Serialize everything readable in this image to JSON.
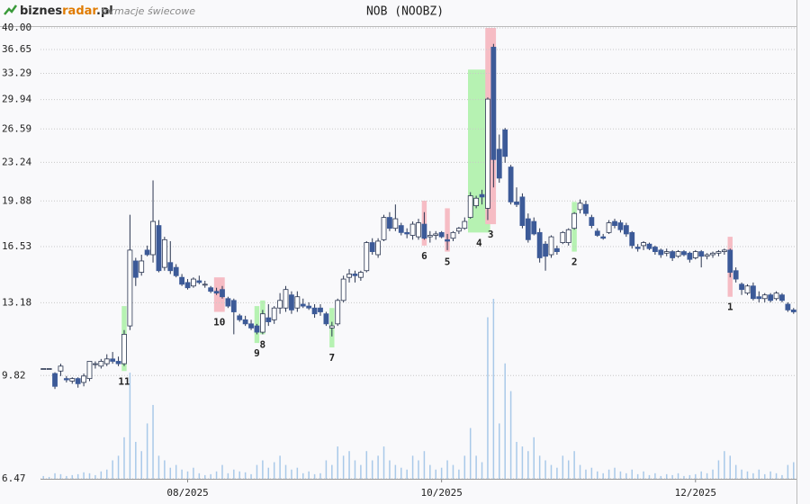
{
  "header": {
    "brand": "biznes",
    "brand_accent": "radar",
    "brand_tld": ".pl",
    "subtitle": "formacje świecowe"
  },
  "chart_data": {
    "type": "candlestick",
    "title": "NOB (NOOBZ)",
    "log_scale": true,
    "grid": true,
    "up_color": "#ffffff",
    "down_color": "#3c5a98",
    "outline_color": "#2a3550",
    "volume_color": "#a9c9e9",
    "bullish_color": "#b6f2b2",
    "bearish_color": "#f6bcc4",
    "ylim": [
      6.47,
      40
    ],
    "yticks": [
      6.47,
      9.82,
      13.18,
      16.53,
      19.88,
      23.24,
      26.59,
      29.94,
      33.29,
      36.65,
      {
        "value": 40,
        "label": "40.00"
      }
    ],
    "categories": [
      null,
      null,
      null,
      null,
      null,
      null,
      null,
      null,
      null,
      null,
      null,
      null,
      null,
      null,
      null,
      null,
      null,
      null,
      null,
      null,
      null,
      null,
      null,
      null,
      null,
      "08/2025",
      null,
      null,
      null,
      null,
      null,
      null,
      null,
      null,
      null,
      null,
      null,
      null,
      null,
      null,
      null,
      null,
      null,
      null,
      null,
      null,
      null,
      null,
      null,
      null,
      null,
      null,
      null,
      null,
      null,
      null,
      null,
      null,
      null,
      null,
      null,
      null,
      null,
      null,
      null,
      null,
      null,
      null,
      null,
      "10/2025",
      null,
      null,
      null,
      null,
      null,
      null,
      null,
      null,
      null,
      null,
      null,
      null,
      null,
      null,
      null,
      null,
      null,
      null,
      null,
      null,
      null,
      null,
      null,
      null,
      null,
      null,
      null,
      null,
      null,
      null,
      null,
      null,
      null,
      null,
      null,
      null,
      null,
      null,
      null,
      null,
      null,
      null,
      null,
      "12/2025",
      null,
      null,
      null,
      null,
      null,
      null,
      null,
      null,
      null,
      null,
      null,
      null,
      null,
      null,
      null,
      null,
      null
    ],
    "open": [
      10.1,
      10.1,
      9.9,
      10.0,
      9.7,
      9.6,
      9.7,
      9.55,
      9.7,
      10.3,
      10.2,
      10.3,
      10.5,
      10.4,
      10.3,
      12.0,
      15.6,
      14.9,
      16.3,
      16.0,
      18.0,
      15.2,
      15.5,
      15.2,
      14.6,
      14.3,
      14.1,
      14.4,
      14.2,
      14.0,
      13.8,
      13.9,
      13.4,
      13.3,
      12.5,
      12.3,
      12.1,
      12.0,
      11.7,
      12.4,
      12.3,
      12.9,
      12.9,
      13.6,
      12.9,
      13.1,
      13.0,
      12.9,
      12.9,
      12.6,
      11.9,
      12.1,
      13.3,
      14.6,
      14.8,
      14.6,
      15.0,
      16.8,
      16.0,
      17.0,
      18.6,
      17.8,
      18.0,
      17.5,
      17.3,
      17.2,
      18.1,
      17.2,
      17.3,
      17.5,
      17.0,
      17.1,
      17.6,
      17.8,
      18.6,
      19.5,
      20.4,
      19.3,
      37.0,
      24.5,
      26.5,
      22.8,
      19.8,
      20.2,
      18.5,
      18.3,
      17.5,
      16.7,
      16.0,
      16.4,
      16.8,
      16.8,
      17.8,
      19.2,
      19.6,
      18.6,
      17.6,
      17.2,
      17.5,
      18.3,
      18.2,
      18.0,
      17.5,
      16.5,
      16.6,
      16.7,
      16.5,
      16.3,
      16.1,
      16.2,
      15.9,
      16.2,
      16.1,
      15.8,
      16.2,
      15.9,
      16.0,
      16.1,
      16.2,
      16.3,
      15.0,
      14.2,
      13.7,
      14.1,
      13.5,
      13.4,
      13.6,
      13.4,
      13.6,
      13.1,
      12.8
    ],
    "high": [
      10.1,
      10.1,
      9.95,
      10.3,
      9.8,
      9.75,
      9.75,
      9.9,
      10.4,
      10.4,
      10.5,
      10.7,
      10.8,
      10.6,
      11.8,
      18.8,
      15.8,
      16.0,
      16.6,
      21.6,
      18.4,
      17.2,
      16.9,
      15.4,
      14.8,
      14.5,
      14.6,
      14.7,
      14.4,
      14.1,
      14.0,
      14.1,
      13.5,
      13.4,
      12.6,
      12.5,
      12.3,
      12.1,
      12.8,
      13.1,
      13.0,
      13.7,
      14.1,
      13.8,
      13.8,
      13.4,
      13.2,
      13.1,
      13.1,
      12.7,
      12.2,
      13.4,
      14.7,
      15.1,
      15.0,
      15.0,
      16.9,
      17.1,
      17.1,
      18.8,
      19.0,
      19.6,
      18.2,
      17.8,
      18.3,
      18.5,
      19.0,
      17.6,
      17.6,
      17.6,
      17.4,
      17.6,
      17.9,
      18.6,
      20.6,
      20.3,
      20.8,
      30.2,
      37.5,
      26.0,
      26.7,
      23.0,
      21.0,
      20.5,
      18.9,
      18.6,
      17.8,
      16.9,
      17.3,
      16.6,
      17.6,
      17.8,
      19.0,
      20.0,
      19.9,
      18.8,
      17.8,
      17.4,
      18.4,
      18.5,
      18.4,
      18.2,
      17.6,
      16.7,
      16.9,
      16.8,
      16.6,
      16.4,
      16.4,
      16.3,
      16.3,
      16.3,
      16.2,
      16.3,
      16.3,
      16.1,
      16.2,
      16.3,
      16.4,
      16.4,
      15.2,
      14.3,
      14.2,
      14.3,
      13.8,
      13.7,
      13.7,
      13.8,
      13.7,
      13.2,
      12.9
    ],
    "low": [
      10.1,
      10.1,
      9.3,
      9.8,
      9.55,
      9.5,
      9.35,
      9.4,
      9.6,
      10.1,
      10.1,
      10.2,
      10.3,
      10.2,
      10.2,
      11.8,
      14.1,
      14.7,
      15.9,
      15.5,
      14.9,
      15.0,
      14.8,
      14.6,
      14.1,
      13.9,
      14.0,
      14.2,
      14.0,
      13.7,
      13.6,
      13.4,
      12.9,
      11.6,
      12.2,
      12.0,
      11.8,
      11.6,
      11.6,
      12.0,
      12.1,
      12.6,
      12.7,
      12.6,
      12.7,
      12.9,
      12.8,
      12.4,
      12.5,
      12.0,
      11.5,
      12.0,
      13.2,
      14.3,
      14.3,
      14.4,
      14.9,
      16.0,
      15.8,
      16.9,
      17.6,
      17.6,
      17.3,
      17.1,
      17.0,
      17.0,
      17.0,
      16.8,
      17.0,
      17.1,
      16.3,
      16.9,
      17.4,
      17.7,
      18.5,
      19.3,
      19.6,
      18.4,
      21.0,
      21.4,
      23.2,
      19.6,
      19.4,
      17.8,
      16.8,
      17.3,
      15.5,
      15.0,
      15.8,
      16.0,
      16.7,
      16.6,
      17.7,
      18.9,
      18.7,
      17.8,
      17.2,
      17.0,
      17.4,
      17.8,
      17.5,
      17.2,
      16.4,
      16.2,
      16.3,
      16.3,
      16.0,
      15.8,
      15.9,
      15.6,
      15.8,
      15.9,
      15.5,
      15.7,
      15.2,
      15.7,
      15.8,
      15.9,
      16.0,
      14.6,
      14.3,
      13.6,
      13.6,
      13.3,
      13.2,
      13.2,
      13.2,
      13.3,
      13.2,
      12.7,
      12.6
    ],
    "close": [
      10.1,
      10.1,
      9.4,
      10.2,
      9.65,
      9.7,
      9.5,
      9.8,
      10.4,
      10.3,
      10.4,
      10.5,
      10.4,
      10.3,
      11.6,
      16.3,
      14.6,
      15.6,
      16.0,
      18.3,
      15.0,
      17.0,
      15.0,
      14.7,
      14.2,
      14.0,
      14.5,
      14.3,
      14.2,
      13.8,
      13.7,
      13.5,
      13.0,
      12.7,
      12.3,
      12.1,
      11.9,
      11.7,
      12.6,
      12.2,
      12.9,
      13.3,
      13.9,
      12.8,
      13.5,
      13.0,
      12.9,
      12.6,
      12.7,
      12.1,
      12.0,
      13.3,
      14.5,
      14.8,
      14.7,
      14.9,
      16.8,
      16.2,
      16.9,
      18.6,
      17.8,
      18.5,
      17.5,
      17.4,
      18.1,
      18.2,
      17.1,
      17.3,
      17.4,
      17.2,
      16.9,
      17.5,
      17.8,
      18.3,
      20.3,
      20.1,
      20.2,
      30.0,
      23.5,
      21.8,
      23.8,
      19.8,
      19.6,
      18.0,
      17.0,
      17.4,
      15.8,
      15.9,
      17.2,
      16.2,
      17.5,
      17.7,
      18.9,
      19.7,
      18.9,
      18.0,
      17.3,
      17.1,
      18.2,
      18.0,
      17.7,
      17.4,
      16.6,
      16.4,
      16.8,
      16.4,
      16.2,
      16.0,
      16.2,
      15.8,
      16.2,
      16.0,
      15.7,
      16.2,
      15.9,
      16.0,
      16.1,
      16.2,
      16.3,
      14.9,
      14.5,
      13.9,
      14.1,
      13.4,
      13.4,
      13.6,
      13.3,
      13.7,
      13.3,
      12.8,
      12.7
    ],
    "volume": [
      3,
      2,
      6,
      5,
      3,
      4,
      5,
      7,
      6,
      4,
      8,
      10,
      20,
      25,
      45,
      115,
      40,
      30,
      60,
      80,
      25,
      20,
      12,
      15,
      10,
      8,
      12,
      6,
      4,
      5,
      8,
      15,
      6,
      10,
      8,
      7,
      5,
      15,
      20,
      12,
      18,
      25,
      15,
      10,
      12,
      6,
      8,
      5,
      6,
      20,
      15,
      35,
      25,
      30,
      20,
      15,
      30,
      20,
      25,
      35,
      20,
      15,
      12,
      10,
      25,
      20,
      30,
      15,
      10,
      12,
      20,
      15,
      10,
      25,
      55,
      25,
      18,
      175,
      195,
      60,
      125,
      95,
      40,
      35,
      30,
      45,
      25,
      20,
      15,
      12,
      25,
      20,
      30,
      15,
      10,
      12,
      8,
      6,
      10,
      12,
      8,
      6,
      10,
      5,
      8,
      4,
      6,
      3,
      5,
      4,
      6,
      3,
      4,
      5,
      8,
      6,
      10,
      20,
      30,
      25,
      15,
      10,
      8,
      6,
      10,
      5,
      8,
      6,
      4,
      15,
      18
    ],
    "patterns": [
      {
        "label": "11",
        "start": 14,
        "end": 14,
        "low": 10.0,
        "high": 13.0,
        "kind": "bullish"
      },
      {
        "label": "10",
        "start": 30,
        "end": 31,
        "low": 12.7,
        "high": 14.6,
        "kind": "bearish"
      },
      {
        "label": "9",
        "start": 37,
        "end": 37,
        "low": 11.2,
        "high": 13.0,
        "kind": "bullish"
      },
      {
        "label": "8",
        "start": 38,
        "end": 38,
        "low": 11.6,
        "high": 13.3,
        "kind": "bullish"
      },
      {
        "label": "7",
        "start": 50,
        "end": 50,
        "low": 11.0,
        "high": 12.9,
        "kind": "bullish"
      },
      {
        "label": "6",
        "start": 66,
        "end": 66,
        "low": 16.6,
        "high": 19.9,
        "kind": "bearish"
      },
      {
        "label": "5",
        "start": 70,
        "end": 70,
        "low": 16.2,
        "high": 19.3,
        "kind": "bearish"
      },
      {
        "label": "4",
        "start": 74,
        "end": 77,
        "low": 17.5,
        "high": 33.8,
        "kind": "bullish"
      },
      {
        "label": "3",
        "start": 77,
        "end": 78,
        "low": 18.1,
        "high": 40,
        "kind": "bearish"
      },
      {
        "label": "2",
        "start": 92,
        "end": 92,
        "low": 16.2,
        "high": 19.8,
        "kind": "bullish"
      },
      {
        "label": "1",
        "start": 119,
        "end": 119,
        "low": 13.5,
        "high": 17.2,
        "kind": "bearish"
      }
    ]
  }
}
